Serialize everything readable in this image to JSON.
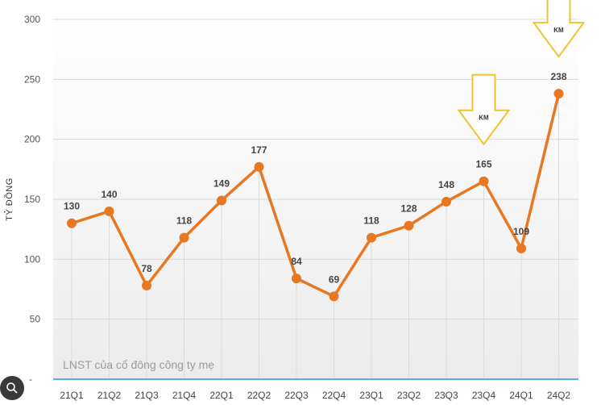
{
  "chart_data": {
    "type": "line",
    "ylabel": "TỶ ĐỒNG",
    "annotation": "LNST của cổ đông công ty mẹ",
    "categories": [
      "21Q1",
      "21Q2",
      "21Q3",
      "21Q4",
      "22Q1",
      "22Q2",
      "22Q3",
      "22Q4",
      "23Q1",
      "23Q2",
      "23Q3",
      "23Q4",
      "24Q1",
      "24Q2"
    ],
    "values": [
      130,
      140,
      78,
      118,
      149,
      177,
      84,
      69,
      118,
      128,
      148,
      165,
      109,
      238
    ],
    "ylim": [
      0,
      300
    ],
    "yticks": [
      50,
      100,
      150,
      200,
      250,
      300
    ],
    "grid": true,
    "line_color": "#E87722",
    "markers": [
      {
        "category": "23Q4",
        "label": "KM"
      },
      {
        "category": "24Q2",
        "label": "KM"
      }
    ]
  },
  "ui": {
    "zoom_icon": "search-zoom-icon"
  }
}
